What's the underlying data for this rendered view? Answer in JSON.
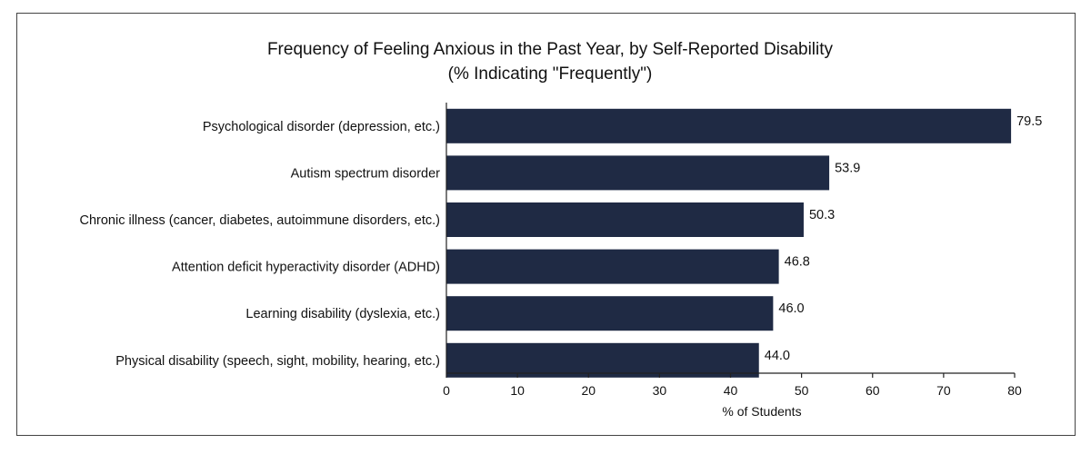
{
  "chart_data": {
    "type": "bar",
    "orientation": "horizontal",
    "title": "Frequency of Feeling Anxious in the Past Year, by Self-Reported Disability",
    "subtitle": "(% Indicating \"Frequently\")",
    "categories": [
      "Psychological disorder (depression, etc.)",
      "Autism spectrum disorder",
      "Chronic illness (cancer, diabetes, autoimmune disorders, etc.)",
      "Attention deficit hyperactivity disorder (ADHD)",
      "Learning disability (dyslexia, etc.)",
      "Physical disability (speech, sight, mobility, hearing, etc.)"
    ],
    "values": [
      79.5,
      53.9,
      50.3,
      46.8,
      46.0,
      44.0
    ],
    "value_labels": [
      "79.5",
      "53.9",
      "50.3",
      "46.8",
      "46.0",
      "44.0"
    ],
    "xlabel": "% of Students",
    "ylabel": "",
    "xlim": [
      0,
      80
    ],
    "xticks": [
      0,
      10,
      20,
      30,
      40,
      50,
      60,
      70,
      80
    ],
    "grid": false,
    "legend": "none",
    "colors": {
      "bar": "#1f2a44",
      "text": "#111111",
      "axis": "#222222",
      "frame": "#444444"
    }
  }
}
